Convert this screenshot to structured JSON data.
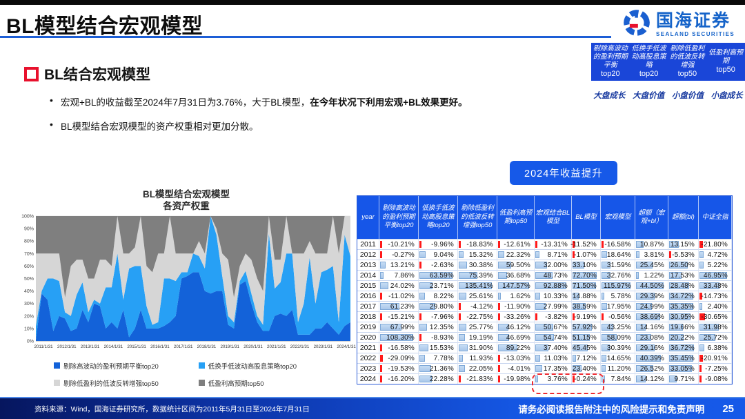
{
  "header": {
    "title": "BL模型结合宏观模型",
    "logo": {
      "name": "国海证券",
      "sub": "SEALAND SECURITIES"
    }
  },
  "mini_table": {
    "columns": [
      {
        "name": "剔除高波动的盈利预期平衡",
        "top": "top20",
        "style": "大盘成长"
      },
      {
        "name": "低换手低波动高股息策略",
        "top": "top20",
        "style": "大盘价值"
      },
      {
        "name": "剔除低盈利的低波反转增强",
        "top": "top50",
        "style": "小盘价值"
      },
      {
        "name": "低盈利高预期",
        "top": "top50",
        "style": "小盘成长"
      }
    ]
  },
  "section": {
    "heading": "BL结合宏观模型",
    "bullets": [
      {
        "text": "宏观+BL的收益截至2024年7月31日为3.76%，大于BL模型，",
        "bold": "在今年状况下利用宏观+BL效果更好。"
      },
      {
        "text": "BL模型结合宏观模型的资产权重相对更加分散。",
        "bold": ""
      }
    ]
  },
  "badge": {
    "label": "2024年收益提升"
  },
  "chart_data": {
    "type": "area",
    "stacked": true,
    "title_line1": "BL模型结合宏观模型",
    "title_line2": "各资产权重",
    "ylim": [
      0,
      100
    ],
    "ytick_step": 10,
    "ytick_format": "percent",
    "grid": true,
    "legend_position": "bottom",
    "xtick_labels": [
      "2011/1/31",
      "2012/1/31",
      "2013/1/31",
      "2014/1/31",
      "2015/1/31",
      "2016/1/31",
      "2017/1/31",
      "2018/1/31",
      "2019/1/31",
      "2020/1/31",
      "2021/1/31",
      "2022/1/31",
      "2023/1/31",
      "2024/1/31"
    ],
    "x": [
      "2011/1",
      "2011/4",
      "2011/7",
      "2011/10",
      "2012/1",
      "2012/4",
      "2012/7",
      "2012/10",
      "2013/1",
      "2013/4",
      "2013/7",
      "2013/10",
      "2014/1",
      "2014/4",
      "2014/7",
      "2014/10",
      "2015/1",
      "2015/4",
      "2015/7",
      "2015/10",
      "2016/1",
      "2016/4",
      "2016/7",
      "2016/10",
      "2017/1",
      "2017/4",
      "2017/7",
      "2017/10",
      "2018/1",
      "2018/4",
      "2018/7",
      "2018/10",
      "2019/1",
      "2019/4",
      "2019/7",
      "2019/10",
      "2020/1",
      "2020/4",
      "2020/7",
      "2020/10",
      "2021/1",
      "2021/4",
      "2021/7",
      "2021/10",
      "2022/1",
      "2022/4",
      "2022/7",
      "2022/10",
      "2023/1",
      "2023/4",
      "2023/7",
      "2023/10",
      "2024/1",
      "2024/4",
      "2024/7"
    ],
    "series": [
      {
        "name": "剔除高波动的盈利预期平衡top20",
        "color": "#1362d9",
        "values": [
          1,
          38,
          33,
          8,
          20,
          18,
          8,
          10,
          25,
          15,
          30,
          28,
          10,
          15,
          10,
          25,
          3,
          10,
          25,
          10,
          10,
          10,
          12,
          15,
          20,
          50,
          52,
          55,
          55,
          40,
          38,
          40,
          40,
          13,
          10,
          45,
          48,
          30,
          15,
          8,
          8,
          20,
          22,
          20,
          25,
          5,
          5,
          5,
          10,
          10,
          15,
          10,
          5,
          12,
          15
        ]
      },
      {
        "name": "低换手低波动高股息策略top20",
        "color": "#27a0f5",
        "values": [
          11,
          2,
          17,
          42,
          28,
          5,
          12,
          27,
          22,
          8,
          3,
          2,
          33,
          28,
          60,
          8,
          55,
          50,
          35,
          18,
          3,
          5,
          38,
          35,
          28,
          5,
          3,
          15,
          13,
          18,
          62,
          45,
          12,
          7,
          5,
          3,
          8,
          8,
          5,
          5,
          78,
          22,
          25,
          50,
          45,
          10,
          25,
          62,
          20,
          45,
          42,
          50,
          10,
          73,
          53
        ]
      },
      {
        "name": "剔除低盈利的低波反转增强top50",
        "color": "#d6d6d6",
        "values": [
          58,
          30,
          20,
          20,
          22,
          12,
          40,
          28,
          18,
          27,
          17,
          35,
          22,
          17,
          30,
          37,
          12,
          15,
          40,
          32,
          42,
          55,
          20,
          50,
          22,
          15,
          15,
          0,
          12,
          12,
          0,
          5,
          18,
          45,
          20,
          12,
          14,
          27,
          30,
          27,
          14,
          23,
          18,
          30,
          0,
          55,
          40,
          13,
          40,
          15,
          13,
          40,
          55,
          15,
          32
        ]
      },
      {
        "name": "低盈利高预期top50",
        "color": "#7f7f7f",
        "values": [
          30,
          30,
          30,
          30,
          30,
          65,
          40,
          35,
          35,
          50,
          50,
          35,
          35,
          40,
          0,
          30,
          30,
          25,
          0,
          40,
          45,
          30,
          30,
          0,
          30,
          30,
          30,
          30,
          20,
          30,
          0,
          10,
          30,
          35,
          65,
          40,
          30,
          35,
          50,
          60,
          0,
          35,
          35,
          0,
          30,
          30,
          30,
          20,
          30,
          30,
          30,
          0,
          30,
          0,
          0
        ]
      }
    ]
  },
  "table": {
    "columns": [
      "year",
      "剔除高波动的盈利预期平衡top20",
      "低换手低波动高股息策略top20",
      "剔除低盈利的低波反转增强top50",
      "低盈利高预期top50",
      "宏观结合BL模型",
      "BL模型",
      "宏观模型",
      "超额（宏观+bl）",
      "超额(bl)",
      "中证全指"
    ],
    "rows": [
      {
        "year": "2011",
        "values": [
          -10.21,
          -9.96,
          -18.83,
          -12.61,
          -13.31,
          -11.52,
          -16.58,
          10.87,
          13.15,
          -21.8
        ]
      },
      {
        "year": "2012",
        "values": [
          -0.27,
          9.04,
          15.32,
          22.32,
          8.71,
          -1.07,
          18.64,
          3.81,
          -5.53,
          4.72
        ]
      },
      {
        "year": "2013",
        "values": [
          13.21,
          -2.63,
          30.38,
          59.5,
          32.0,
          33.1,
          31.59,
          25.45,
          26.5,
          5.22
        ]
      },
      {
        "year": "2014",
        "values": [
          7.86,
          63.59,
          75.39,
          36.68,
          48.73,
          72.7,
          32.76,
          1.22,
          17.53,
          46.95
        ]
      },
      {
        "year": "2015",
        "values": [
          24.02,
          23.71,
          135.41,
          147.57,
          92.88,
          71.5,
          115.97,
          44.5,
          28.48,
          33.48
        ]
      },
      {
        "year": "2016",
        "values": [
          -11.02,
          8.22,
          25.61,
          1.62,
          10.33,
          14.88,
          5.78,
          29.39,
          34.72,
          -14.73
        ]
      },
      {
        "year": "2017",
        "values": [
          61.23,
          29.8,
          -4.12,
          -11.9,
          27.99,
          38.59,
          17.95,
          24.99,
          35.35,
          2.4
        ]
      },
      {
        "year": "2018",
        "values": [
          -15.21,
          -7.96,
          -22.75,
          -33.26,
          -3.82,
          -9.19,
          -0.56,
          38.69,
          30.95,
          -30.65
        ]
      },
      {
        "year": "2019",
        "values": [
          67.99,
          12.35,
          25.77,
          46.12,
          50.67,
          57.92,
          43.25,
          14.16,
          19.66,
          31.98
        ]
      },
      {
        "year": "2020",
        "values": [
          108.3,
          -8.93,
          19.19,
          46.69,
          54.74,
          51.15,
          58.09,
          23.08,
          20.22,
          25.72
        ]
      },
      {
        "year": "2021",
        "values": [
          -16.58,
          15.53,
          31.9,
          89.22,
          37.4,
          45.45,
          30.39,
          29.16,
          36.72,
          6.38
        ]
      },
      {
        "year": "2022",
        "values": [
          -29.09,
          7.78,
          11.93,
          -13.03,
          11.03,
          7.12,
          14.65,
          40.39,
          35.45,
          -20.91
        ]
      },
      {
        "year": "2023",
        "values": [
          -19.53,
          21.36,
          22.05,
          -4.01,
          17.35,
          23.4,
          11.2,
          26.52,
          33.05,
          -7.25
        ]
      },
      {
        "year": "2024",
        "values": [
          -16.2,
          22.28,
          -21.83,
          -19.98,
          3.76,
          -0.24,
          7.84,
          14.12,
          9.71,
          -9.08
        ]
      }
    ],
    "highlight": {
      "row": "2024",
      "columns": [
        "宏观结合BL模型",
        "BL模型"
      ]
    }
  },
  "footer": {
    "source": "资料来源：Wind，国海证券研究所，数据统计区间为2011年5月31日至2024年7月31日",
    "disclaimer": "请务必阅读报告附注中的风险提示和免责声明",
    "page": "25"
  },
  "colors": {
    "accent_blue": "#1659e8",
    "table_header_blue": "#1656e8",
    "mini_table_blue": "#1a46d8",
    "highlight_red": "#ee2b31",
    "bar_positive": "#a9c7ea",
    "bar_negative": "#ff1a1a",
    "title_rule_blue": "#1d5ed6"
  }
}
